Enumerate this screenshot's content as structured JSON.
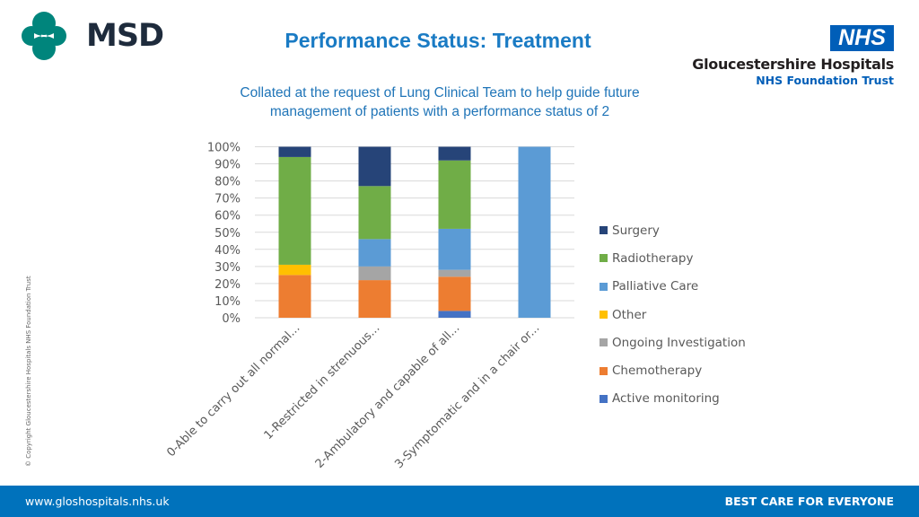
{
  "header": {
    "title": "Performance Status: Treatment",
    "subtitle_line1": "Collated at the request of Lung Clinical Team to help guide future",
    "subtitle_line2": "management of patients with a performance status of 2"
  },
  "logos": {
    "msd": "MSD",
    "msd_color": "#00857c",
    "nhs": "NHS",
    "nhs_color": "#005eb8",
    "org_name": "Gloucestershire Hospitals",
    "org_trust": "NHS Foundation Trust"
  },
  "copyright": "© Copyright Gloucestershire Hospitals NHS Foundation Trust",
  "footer": {
    "url": "www.gloshospitals.nhs.uk",
    "tagline": "BEST CARE FOR EVERYONE"
  },
  "chart_data": {
    "type": "bar",
    "stacked": true,
    "percent_stacked": true,
    "title": "",
    "xlabel": "",
    "ylabel": "",
    "ylim": [
      0,
      100
    ],
    "yticks": [
      "0%",
      "10%",
      "20%",
      "30%",
      "40%",
      "50%",
      "60%",
      "70%",
      "80%",
      "90%",
      "100%"
    ],
    "grid": true,
    "legend_position": "right",
    "categories": [
      "0-Able to carry out all normal...",
      "1-Restricted in strenuous...",
      "2-Ambulatory and capable of all...",
      "3-Symptomatic and in a chair or..."
    ],
    "series": [
      {
        "name": "Active monitoring",
        "color": "#4472c4",
        "values": [
          0,
          0,
          4,
          0
        ]
      },
      {
        "name": "Chemotherapy",
        "color": "#ed7d31",
        "values": [
          25,
          22,
          20,
          0
        ]
      },
      {
        "name": "Ongoing Investigation",
        "color": "#a5a5a5",
        "values": [
          0,
          8,
          4,
          0
        ]
      },
      {
        "name": "Other",
        "color": "#ffc000",
        "values": [
          6,
          0,
          0,
          0
        ]
      },
      {
        "name": "Palliative Care",
        "color": "#5b9bd5",
        "values": [
          0,
          16,
          24,
          100
        ]
      },
      {
        "name": "Radiotherapy",
        "color": "#70ad47",
        "values": [
          63,
          31,
          40,
          0
        ]
      },
      {
        "name": "Surgery",
        "color": "#264478",
        "values": [
          6,
          23,
          8,
          0
        ]
      }
    ]
  }
}
